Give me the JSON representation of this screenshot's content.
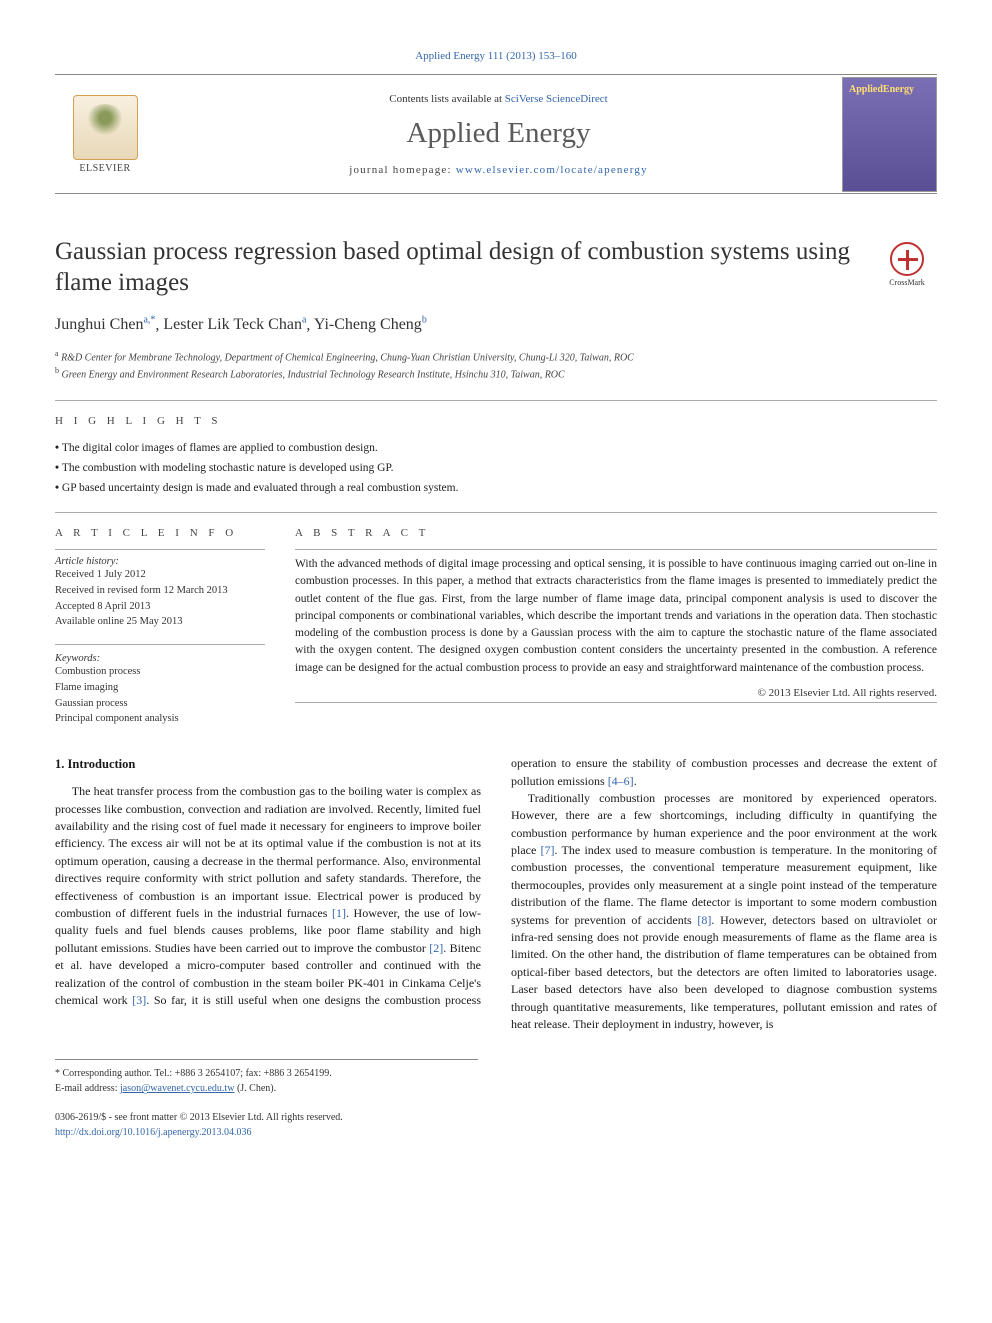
{
  "header_citation": "Applied Energy 111 (2013) 153–160",
  "banner": {
    "contents_prefix": "Contents lists available at ",
    "contents_link": "SciVerse ScienceDirect",
    "journal_name": "Applied Energy",
    "homepage_prefix": "journal homepage: ",
    "homepage_url": "www.elsevier.com/locate/apenergy",
    "publisher": "ELSEVIER",
    "cover_title": "AppliedEnergy"
  },
  "crossmark_label": "CrossMark",
  "article": {
    "title": "Gaussian process regression based optimal design of combustion systems using flame images",
    "authors_html": [
      {
        "name": "Junghui Chen",
        "sup": "a,*"
      },
      {
        "name": "Lester Lik Teck Chan",
        "sup": "a"
      },
      {
        "name": "Yi-Cheng Cheng",
        "sup": "b"
      }
    ],
    "affiliations": [
      {
        "sup": "a",
        "text": "R&D Center for Membrane Technology, Department of Chemical Engineering, Chung-Yuan Christian University, Chung-Li 320, Taiwan, ROC"
      },
      {
        "sup": "b",
        "text": "Green Energy and Environment Research Laboratories, Industrial Technology Research Institute, Hsinchu 310, Taiwan, ROC"
      }
    ]
  },
  "highlights_label": "H I G H L I G H T S",
  "highlights": [
    "The digital color images of flames are applied to combustion design.",
    "The combustion with modeling stochastic nature is developed using GP.",
    "GP based uncertainty design is made and evaluated through a real combustion system."
  ],
  "info_label": "A R T I C L E   I N F O",
  "abstract_label": "A B S T R A C T",
  "history_label": "Article history:",
  "history": [
    "Received 1 July 2012",
    "Received in revised form 12 March 2013",
    "Accepted 8 April 2013",
    "Available online 25 May 2013"
  ],
  "keywords_label": "Keywords:",
  "keywords": [
    "Combustion process",
    "Flame imaging",
    "Gaussian process",
    "Principal component analysis"
  ],
  "abstract": "With the advanced methods of digital image processing and optical sensing, it is possible to have continuous imaging carried out on-line in combustion processes. In this paper, a method that extracts characteristics from the flame images is presented to immediately predict the outlet content of the flue gas. First, from the large number of flame image data, principal component analysis is used to discover the principal components or combinational variables, which describe the important trends and variations in the operation data. Then stochastic modeling of the combustion process is done by a Gaussian process with the aim to capture the stochastic nature of the flame associated with the oxygen content. The designed oxygen combustion content considers the uncertainty presented in the combustion. A reference image can be designed for the actual combustion process to provide an easy and straightforward maintenance of the combustion process.",
  "copyright": "© 2013 Elsevier Ltd. All rights reserved.",
  "intro_heading": "1. Introduction",
  "intro_p1": "The heat transfer process from the combustion gas to the boiling water is complex as processes like combustion, convection and radiation are involved. Recently, limited fuel availability and the rising cost of fuel made it necessary for engineers to improve boiler efficiency. The excess air will not be at its optimal value if the combustion is not at its optimum operation, causing a decrease in the thermal performance. Also, environmental directives require conformity with strict pollution and safety standards. Therefore, the effectiveness of combustion is an important issue. Electrical power is produced by combustion of different fuels in the industrial furnaces ",
  "intro_p1_ref1": "[1]",
  "intro_p1_cont": ". However, the use of low-quality fuels and fuel blends causes problems, like poor flame stability and high pollutant emissions. Studies have been carried out to improve the combustor ",
  "intro_p1_ref2": "[2]",
  "intro_p1_cont2": ". Bitenc et al. have developed a micro-computer based controller and continued with the realization of the control of combustion in the steam boiler PK-401 in Cinkama Celje's chemical work ",
  "intro_p1_ref3": "[3]",
  "intro_p1_cont3": ". So far, it is still useful when one designs the combustion process operation to ensure the stability of combustion processes and decrease the extent of pollution emissions ",
  "intro_p1_ref4": "[4–6]",
  "intro_p1_cont4": ".",
  "intro_p2": "Traditionally combustion processes are monitored by experienced operators. However, there are a few shortcomings, including difficulty in quantifying the combustion performance by human experience and the poor environment at the work place ",
  "intro_p2_ref1": "[7]",
  "intro_p2_cont": ". The index used to measure combustion is temperature. In the monitoring of combustion processes, the conventional temperature measurement equipment, like thermocouples, provides only measurement at a single point instead of the temperature distribution of the flame. The flame detector is important to some modern combustion systems for prevention of accidents ",
  "intro_p2_ref2": "[8]",
  "intro_p2_cont2": ". However, detectors based on ultraviolet or infra-red sensing does not provide enough measurements of flame as the flame area is limited. On the other hand, the distribution of flame temperatures can be obtained from optical-fiber based detectors, but the detectors are often limited to laboratories usage. Laser based detectors have also been developed to diagnose combustion systems through quantitative measurements, like temperatures, pollutant emission and rates of heat release. Their deployment in industry, however, is",
  "corr": {
    "label": "* Corresponding author. Tel.: +886 3 2654107; fax: +886 3 2654199.",
    "email_label": "E-mail address: ",
    "email": "jason@wavenet.cycu.edu.tw",
    "email_suffix": " (J. Chen)."
  },
  "pub_footer": {
    "line1": "0306-2619/$ - see front matter © 2013 Elsevier Ltd. All rights reserved.",
    "doi": "http://dx.doi.org/10.1016/j.apenergy.2013.04.036"
  },
  "colors": {
    "link": "#3366aa",
    "rule": "#888888",
    "text": "#1a1a1a"
  }
}
